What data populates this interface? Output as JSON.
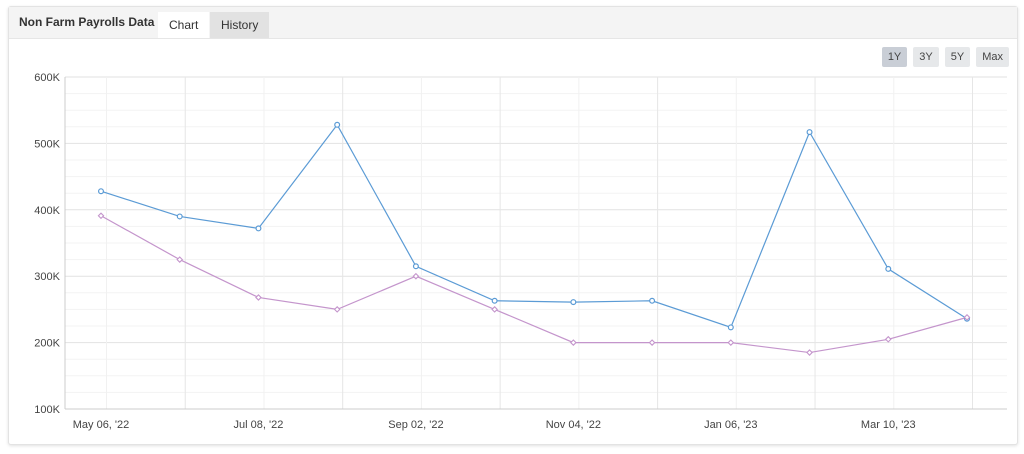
{
  "header": {
    "title": "Non Farm Payrolls Data",
    "tabs": [
      {
        "label": "Chart",
        "active": true
      },
      {
        "label": "History",
        "active": false
      }
    ]
  },
  "range_buttons": [
    {
      "label": "1Y",
      "selected": true
    },
    {
      "label": "3Y",
      "selected": false
    },
    {
      "label": "5Y",
      "selected": false
    },
    {
      "label": "Max",
      "selected": false
    }
  ],
  "colors": {
    "actual": "#5b9bd5",
    "forecast": "#c495cc",
    "grid": "#e8e8e8"
  },
  "chart_data": {
    "type": "line",
    "title": "",
    "xlabel": "",
    "ylabel": "",
    "ylim": [
      100000,
      600000
    ],
    "y_ticks": [
      "100K",
      "200K",
      "300K",
      "400K",
      "500K",
      "600K"
    ],
    "x_tick_labels": [
      "May 06, '22",
      "Jul 08, '22",
      "Sep 02, '22",
      "Nov 04, '22",
      "Jan 06, '23",
      "Mar 10, '23"
    ],
    "x": [
      "May 06, '22",
      "Jun 03, '22",
      "Jul 08, '22",
      "Aug 05, '22",
      "Sep 02, '22",
      "Oct 07, '22",
      "Nov 04, '22",
      "Dec 02, '22",
      "Jan 06, '23",
      "Feb 03, '23",
      "Mar 10, '23",
      "Apr 07, '23"
    ],
    "series": [
      {
        "values": [
          428000,
          390000,
          372000,
          528000,
          315000,
          263000,
          261000,
          263000,
          223000,
          517000,
          311000,
          236000
        ]
      },
      {
        "values": [
          391000,
          325000,
          268000,
          250000,
          300000,
          250000,
          200000,
          200000,
          200000,
          185000,
          205000,
          238000
        ]
      }
    ],
    "grid": true,
    "legend": "none"
  }
}
